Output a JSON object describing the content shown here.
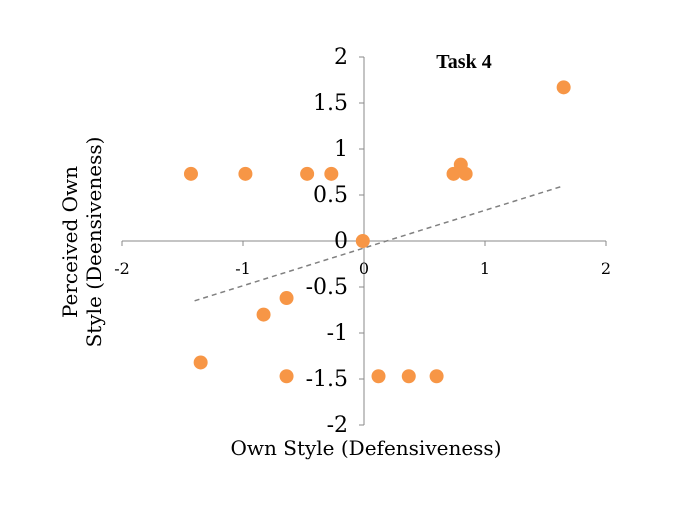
{
  "chart_data": {
    "type": "scatter",
    "title": "Task 4",
    "xlabel": "Own Style (Defensiveness)",
    "ylabel_lines": [
      "Perceived Own",
      "Style (Deensiveness)"
    ],
    "xlim": [
      -2,
      2
    ],
    "ylim": [
      -2,
      2
    ],
    "x_ticks": [
      "-2",
      "-1",
      "0",
      "1",
      "2"
    ],
    "y_ticks": [
      "2",
      "1.5",
      "1",
      "0.5",
      "0",
      "-0.5",
      "-1",
      "-1.5",
      "-2"
    ],
    "grid": false,
    "legend": "none",
    "marker_color": "#F79646",
    "trendline": {
      "style": "dashed",
      "color": "#808080",
      "x": [
        -1.4,
        1.65
      ],
      "y": [
        -0.65,
        0.6
      ]
    },
    "points": [
      {
        "x": -1.43,
        "y": 0.73
      },
      {
        "x": -0.98,
        "y": 0.73
      },
      {
        "x": -0.47,
        "y": 0.73
      },
      {
        "x": -0.27,
        "y": 0.73
      },
      {
        "x": 0.74,
        "y": 0.73
      },
      {
        "x": 0.8,
        "y": 0.83
      },
      {
        "x": 0.84,
        "y": 0.73
      },
      {
        "x": 1.65,
        "y": 1.67
      },
      {
        "x": -0.01,
        "y": 0.0
      },
      {
        "x": -0.64,
        "y": -0.62
      },
      {
        "x": -0.83,
        "y": -0.8
      },
      {
        "x": -1.35,
        "y": -1.32
      },
      {
        "x": -0.64,
        "y": -1.47
      },
      {
        "x": 0.12,
        "y": -1.47
      },
      {
        "x": 0.37,
        "y": -1.47
      },
      {
        "x": 0.6,
        "y": -1.47
      }
    ]
  }
}
